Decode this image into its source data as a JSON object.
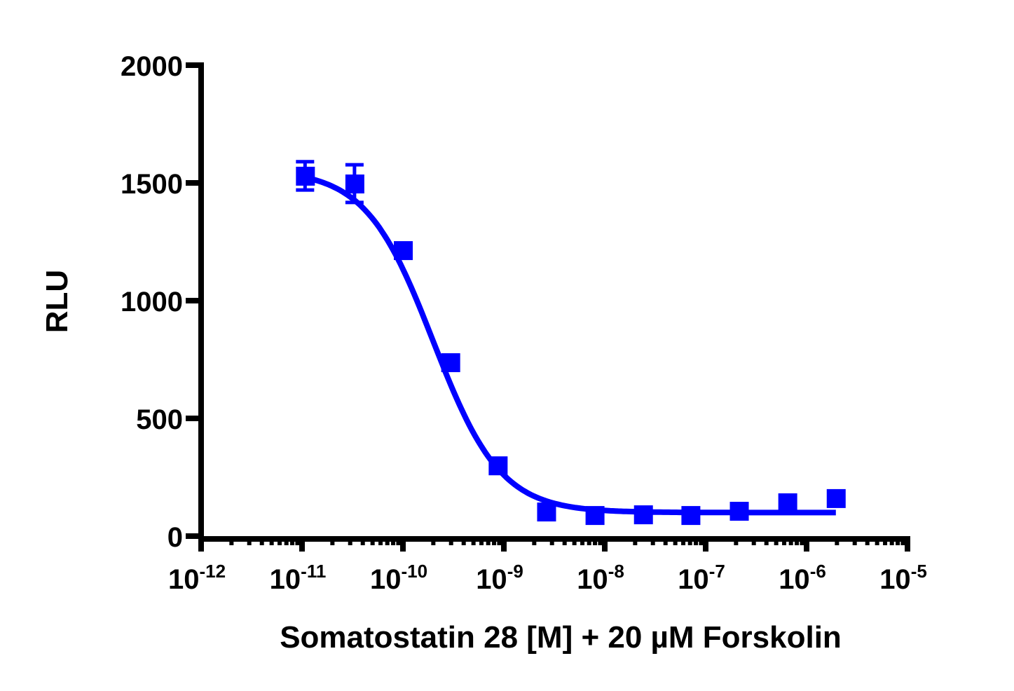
{
  "chart_data": {
    "type": "scatter",
    "title": "",
    "xlabel": "Somatostatin 28 [M] + 20  µM Forskolin",
    "ylabel": "RLU",
    "xscale": "log",
    "xlim_log10": [
      -12,
      -5
    ],
    "ylim": [
      0,
      2000
    ],
    "yticks": [
      0,
      500,
      1000,
      1500,
      2000
    ],
    "xticks_log10": [
      -12,
      -11,
      -10,
      -9,
      -8,
      -7,
      -6,
      -5
    ],
    "xtick_labels": [
      {
        "base": "10",
        "exp": "-12"
      },
      {
        "base": "10",
        "exp": "-11"
      },
      {
        "base": "10",
        "exp": "-10"
      },
      {
        "base": "10",
        "exp": "-9"
      },
      {
        "base": "10",
        "exp": "-8"
      },
      {
        "base": "10",
        "exp": "-7"
      },
      {
        "base": "10",
        "exp": "-6"
      },
      {
        "base": "10",
        "exp": "-5"
      }
    ],
    "grid": false,
    "legend": null,
    "series": [
      {
        "name": "Somatostatin 28",
        "color": "#0000ff",
        "marker": "square",
        "x_log10": [
          -10.97,
          -10.48,
          -10.0,
          -9.53,
          -9.06,
          -8.58,
          -8.1,
          -7.62,
          -7.15,
          -6.67,
          -6.19,
          -5.71
        ],
        "y": [
          1530,
          1497,
          1214,
          738,
          300,
          104,
          89,
          92,
          89,
          107,
          143,
          161
        ],
        "y_err": [
          60,
          80,
          35,
          35,
          15,
          15,
          10,
          10,
          10,
          10,
          15,
          15
        ]
      }
    ],
    "fit": {
      "model": "four-parameter logistic (inhibition)",
      "top": 1555,
      "bottom": 100,
      "log_ic50": -9.7,
      "hill_slope": -1.3,
      "x_range_log10": [
        -10.97,
        -5.71
      ],
      "color": "#0000ff"
    }
  },
  "axes": {
    "y_labels": [
      "0",
      "500",
      "1000",
      "1500",
      "2000"
    ],
    "y_title": "RLU",
    "x_title": "Somatostatin 28 [M] + 20  µM Forskolin"
  }
}
